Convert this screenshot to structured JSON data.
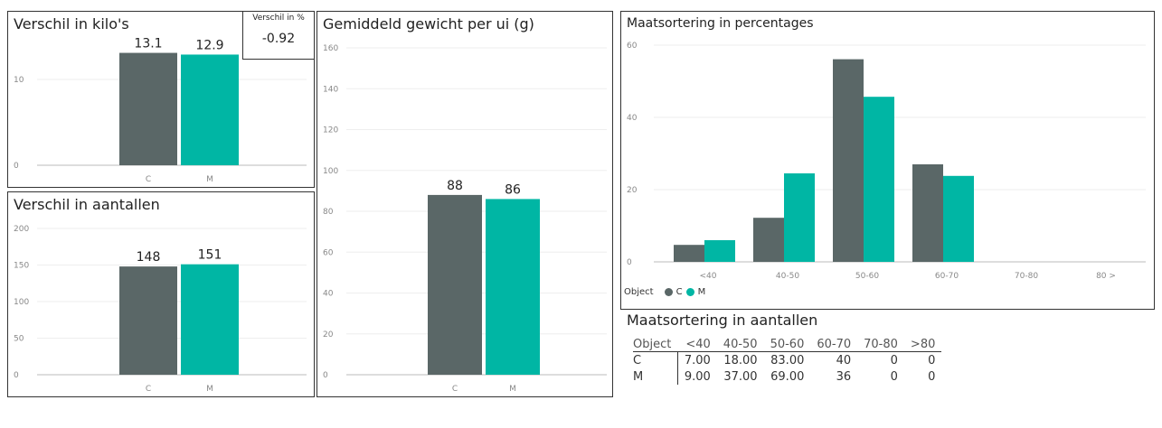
{
  "colors": {
    "C": "#5a6767",
    "M": "#00b6a4"
  },
  "kilos": {
    "title": "Verschil in kilo's"
  },
  "kpi": {
    "title": "Verschil in %",
    "value": "-0.92"
  },
  "aantallen": {
    "title": "Verschil in aantallen"
  },
  "gewicht": {
    "title": "Gemiddeld gewicht per ui (g)"
  },
  "percentages": {
    "title": "Maatsortering in percentages"
  },
  "legend": {
    "label": "Object",
    "items": [
      "C",
      "M"
    ]
  },
  "table": {
    "title": "Maatsortering in aantallen",
    "headers": [
      "Object",
      "<40",
      "40-50",
      "50-60",
      "60-70",
      "70-80",
      ">80"
    ],
    "rows": [
      [
        "C",
        "7.00",
        "18.00",
        "83.00",
        "40",
        "0",
        "0"
      ],
      [
        "M",
        "9.00",
        "37.00",
        "69.00",
        "36",
        "0",
        "0"
      ]
    ]
  },
  "chart_data": [
    {
      "id": "kilos",
      "type": "bar",
      "title": "Verschil in kilo's",
      "categories": [
        "C",
        "M"
      ],
      "values": [
        13.1,
        12.9
      ],
      "labels": [
        "13.1",
        "12.9"
      ],
      "ylim": [
        0,
        16
      ],
      "yticks": [
        0,
        10
      ]
    },
    {
      "id": "aantallen",
      "type": "bar",
      "title": "Verschil in aantallen",
      "categories": [
        "C",
        "M"
      ],
      "values": [
        148,
        151
      ],
      "labels": [
        "148",
        "151"
      ],
      "ylim": [
        0,
        200
      ],
      "yticks": [
        0,
        50,
        100,
        150,
        200
      ]
    },
    {
      "id": "gewicht",
      "type": "bar",
      "title": "Gemiddeld gewicht per ui (g)",
      "categories": [
        "C",
        "M"
      ],
      "values": [
        88,
        86
      ],
      "labels": [
        "88",
        "86"
      ],
      "ylim": [
        0,
        160
      ],
      "yticks": [
        0,
        20,
        40,
        60,
        80,
        100,
        120,
        140,
        160
      ]
    },
    {
      "id": "percentages",
      "type": "bar",
      "title": "Maatsortering in percentages",
      "categories": [
        "<40",
        "40-50",
        "50-60",
        "60-70",
        "70-80",
        "80 >"
      ],
      "series": [
        {
          "name": "C",
          "values": [
            4.7,
            12.2,
            56.1,
            27.0,
            0,
            0
          ]
        },
        {
          "name": "M",
          "values": [
            6.0,
            24.5,
            45.7,
            23.8,
            0,
            0
          ]
        }
      ],
      "ylim": [
        0,
        60
      ],
      "yticks": [
        0,
        20,
        40,
        60
      ]
    }
  ]
}
